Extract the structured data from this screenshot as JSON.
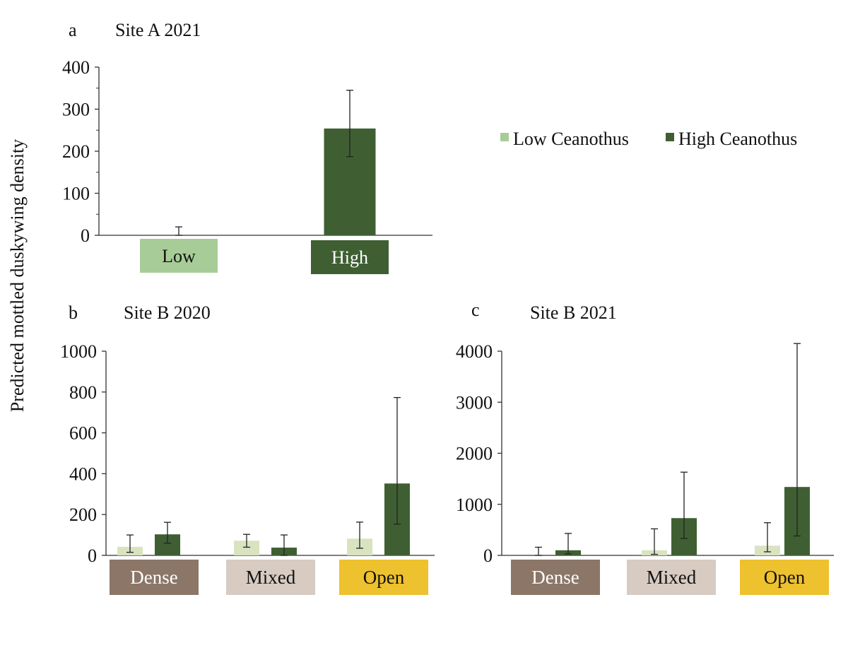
{
  "ylabel": "Predicted mottled duskywing density",
  "legend": [
    {
      "label": "Low Ceanothus",
      "color": "#a8cc98"
    },
    {
      "label": "High Ceanothus",
      "color": "#3f5f33"
    }
  ],
  "chart_data": [
    {
      "type": "bar",
      "panel_letter": "a",
      "title": "Site A 2021",
      "categories": [
        "Low",
        "High"
      ],
      "category_colors": [
        "#a8cc98",
        "#3f5f33"
      ],
      "category_text_colors": [
        "#111111",
        "#ffffff"
      ],
      "series": [
        {
          "values": [
            0,
            254
          ],
          "err_low": [
            0,
            187
          ],
          "err_high": [
            20,
            345
          ],
          "color": "#3f5f33"
        }
      ],
      "ylim": [
        0,
        400
      ],
      "yticks": [
        0,
        100,
        200,
        300,
        400
      ]
    },
    {
      "type": "bar",
      "panel_letter": "b",
      "title": "Site B 2020",
      "categories": [
        "Dense",
        "Mixed",
        "Open"
      ],
      "category_colors": [
        "#8b7668",
        "#d7cbc2",
        "#eec12e"
      ],
      "category_text_colors": [
        "#ffffff",
        "#111111",
        "#111111"
      ],
      "series": [
        {
          "name": "Low Ceanothus",
          "color": "#d9e3c0",
          "values": [
            42,
            72,
            82
          ],
          "err_low": [
            15,
            40,
            35
          ],
          "err_high": [
            100,
            103,
            163
          ]
        },
        {
          "name": "High Ceanothus",
          "color": "#3f5f33",
          "values": [
            103,
            38,
            352
          ],
          "err_low": [
            60,
            0,
            153
          ],
          "err_high": [
            162,
            100,
            773
          ]
        }
      ],
      "ylim": [
        0,
        1000
      ],
      "yticks": [
        0,
        200,
        400,
        600,
        800,
        1000
      ]
    },
    {
      "type": "bar",
      "panel_letter": "c",
      "title": "Site B 2021",
      "categories": [
        "Dense",
        "Mixed",
        "Open"
      ],
      "category_colors": [
        "#8b7668",
        "#d7cbc2",
        "#eec12e"
      ],
      "category_text_colors": [
        "#ffffff",
        "#111111",
        "#111111"
      ],
      "series": [
        {
          "name": "Low Ceanothus",
          "color": "#d9e3c0",
          "values": [
            0,
            100,
            190
          ],
          "err_low": [
            0,
            20,
            70
          ],
          "err_high": [
            160,
            520,
            640
          ]
        },
        {
          "name": "High Ceanothus",
          "color": "#3f5f33",
          "values": [
            100,
            730,
            1340
          ],
          "err_low": [
            30,
            330,
            380
          ],
          "err_high": [
            430,
            1630,
            4150
          ]
        }
      ],
      "ylim": [
        0,
        4000
      ],
      "yticks": [
        0,
        1000,
        2000,
        3000,
        4000
      ]
    }
  ]
}
